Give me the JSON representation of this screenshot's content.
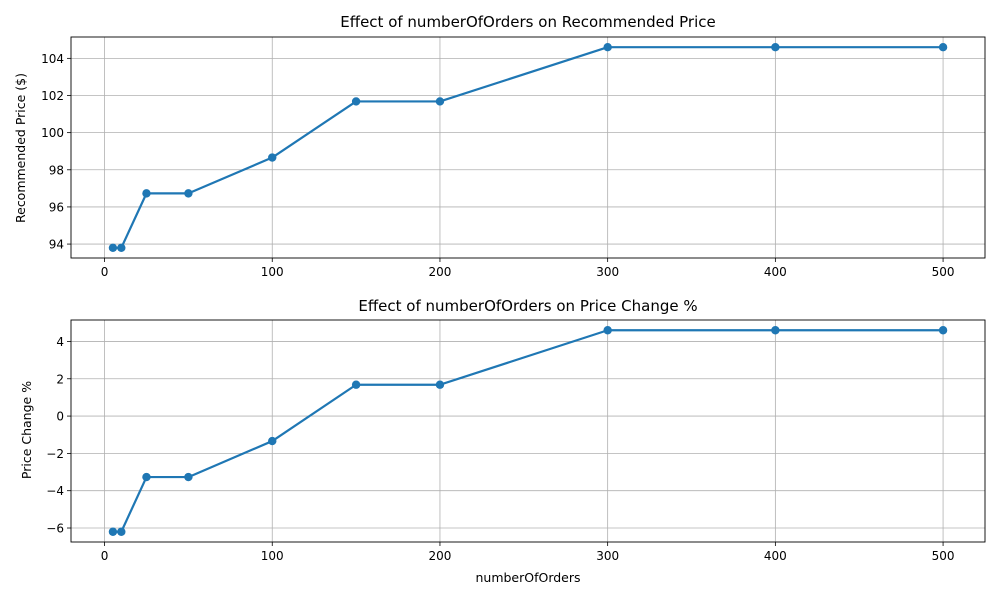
{
  "chart_data": [
    {
      "type": "line",
      "title": "Effect of numberOfOrders on Recommended Price",
      "xlabel": "",
      "ylabel": "Recommended Price ($)",
      "x": [
        5,
        10,
        25,
        50,
        100,
        150,
        200,
        300,
        400,
        500
      ],
      "series": [
        {
          "values": [
            93.8,
            93.8,
            96.73,
            96.73,
            98.66,
            101.68,
            101.68,
            104.6,
            104.6,
            104.6
          ]
        }
      ],
      "xlim": [
        -20,
        525
      ],
      "ylim": [
        93.25,
        105.15
      ],
      "xticks": [
        0,
        100,
        200,
        300,
        400,
        500
      ],
      "yticks": [
        94,
        96,
        98,
        100,
        102,
        104
      ],
      "grid": true,
      "color": "#1f77b4"
    },
    {
      "type": "line",
      "title": "Effect of numberOfOrders on Price Change %",
      "xlabel": "numberOfOrders",
      "ylabel": "Price Change %",
      "x": [
        5,
        10,
        25,
        50,
        100,
        150,
        200,
        300,
        400,
        500
      ],
      "series": [
        {
          "values": [
            -6.2,
            -6.2,
            -3.27,
            -3.27,
            -1.34,
            1.68,
            1.68,
            4.6,
            4.6,
            4.6
          ]
        }
      ],
      "xlim": [
        -20,
        525
      ],
      "ylim": [
        -6.75,
        5.15
      ],
      "xticks": [
        0,
        100,
        200,
        300,
        400,
        500
      ],
      "yticks": [
        -6,
        -4,
        -2,
        0,
        2,
        4
      ],
      "grid": true,
      "color": "#1f77b4"
    }
  ]
}
